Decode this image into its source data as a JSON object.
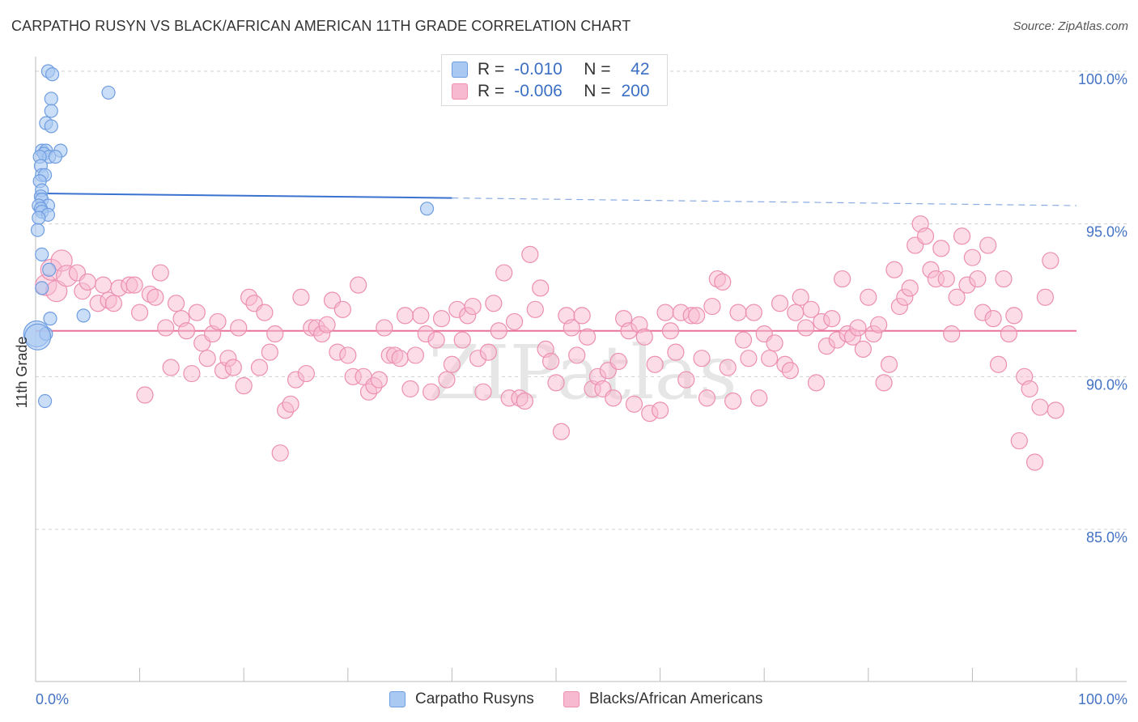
{
  "title": "CARPATHO RUSYN VS BLACK/AFRICAN AMERICAN 11TH GRADE CORRELATION CHART",
  "source": "Source: ZipAtlas.com",
  "watermark": "ZIPatlas",
  "colors": {
    "blue_fill": "#a9c8f2",
    "blue_stroke": "#6f9de0",
    "blue_line": "#3a72d0",
    "pink_fill": "#f7b9cf",
    "pink_stroke": "#ec8fb1",
    "pink_line": "#e8729a",
    "axis_label": "#4472c4",
    "grid": "#d0d0d0"
  },
  "legend_top": {
    "rows": [
      {
        "series": "Carpatho Rusyns",
        "r_label": "R =",
        "r_value": "-0.010",
        "n_label": "N =",
        "n_value": "42"
      },
      {
        "series": "Blacks/African Americans",
        "r_label": "R =",
        "r_value": "-0.006",
        "n_label": "N =",
        "n_value": "200"
      }
    ]
  },
  "legend_bottom": [
    "Carpatho Rusyns",
    "Blacks/African Americans"
  ],
  "chart_data": {
    "type": "scatter",
    "title": "CARPATHO RUSYN VS BLACK/AFRICAN AMERICAN 11TH GRADE CORRELATION CHART",
    "ylabel": "11th Grade",
    "xlabel": "",
    "xlim": [
      0,
      100
    ],
    "ylim": [
      80.0,
      101.0
    ],
    "x_ticks": [
      "0.0%",
      "100.0%"
    ],
    "y_ticks": [
      {
        "value": 100.0,
        "label": "100.0%"
      },
      {
        "value": 95.0,
        "label": "95.0%"
      },
      {
        "value": 90.0,
        "label": "90.0%"
      },
      {
        "value": 85.0,
        "label": "85.0%"
      }
    ],
    "grid": "horizontal dashed",
    "legend": "top-center and bottom",
    "series": [
      {
        "name": "Carpatho Rusyns",
        "R": -0.01,
        "N": 42,
        "trend": {
          "x0": 0,
          "y0": 96.0,
          "x1": 40,
          "y1": 95.85,
          "x_extend": 100,
          "y_extend": 95.6
        },
        "points": [
          [
            1.2,
            100.0
          ],
          [
            1.6,
            99.9
          ],
          [
            7.0,
            99.3
          ],
          [
            1.5,
            99.1
          ],
          [
            1.5,
            98.7
          ],
          [
            1.0,
            98.3
          ],
          [
            1.5,
            98.2
          ],
          [
            0.6,
            97.4
          ],
          [
            1.0,
            97.4
          ],
          [
            2.4,
            97.4
          ],
          [
            0.8,
            97.3
          ],
          [
            1.3,
            97.2
          ],
          [
            0.4,
            97.2
          ],
          [
            1.9,
            97.2
          ],
          [
            0.5,
            96.9
          ],
          [
            0.6,
            96.6
          ],
          [
            0.9,
            96.6
          ],
          [
            0.4,
            96.4
          ],
          [
            0.6,
            96.1
          ],
          [
            0.5,
            95.9
          ],
          [
            0.6,
            95.8
          ],
          [
            1.2,
            95.6
          ],
          [
            0.3,
            95.6
          ],
          [
            0.5,
            95.5
          ],
          [
            0.6,
            95.4
          ],
          [
            1.2,
            95.3
          ],
          [
            0.3,
            95.2
          ],
          [
            37.6,
            95.5
          ],
          [
            0.2,
            94.8
          ],
          [
            0.6,
            94.0
          ],
          [
            1.3,
            93.5
          ],
          [
            0.6,
            92.9
          ],
          [
            1.4,
            91.9
          ],
          [
            4.6,
            92.0
          ],
          [
            0.1,
            91.4
          ],
          [
            1.0,
            91.4
          ],
          [
            0.2,
            91.3
          ],
          [
            0.9,
            89.2
          ]
        ]
      },
      {
        "name": "Blacks/African Americans",
        "R": -0.006,
        "N": 200,
        "trend": {
          "x0": 0,
          "y0": 91.5,
          "x1": 100,
          "y1": 91.5
        },
        "points": [
          [
            1,
            93.0
          ],
          [
            1.5,
            93.5
          ],
          [
            2,
            92.8
          ],
          [
            2.5,
            93.8
          ],
          [
            3,
            93.3
          ],
          [
            4,
            93.4
          ],
          [
            4.5,
            92.8
          ],
          [
            5,
            93.1
          ],
          [
            6,
            92.4
          ],
          [
            6.5,
            93.0
          ],
          [
            7,
            92.5
          ],
          [
            7.5,
            92.4
          ],
          [
            8,
            92.9
          ],
          [
            9,
            93.0
          ],
          [
            9.5,
            93.0
          ],
          [
            10,
            92.1
          ],
          [
            10.5,
            89.4
          ],
          [
            11,
            92.7
          ],
          [
            11.5,
            92.6
          ],
          [
            12,
            93.4
          ],
          [
            12.5,
            91.6
          ],
          [
            13,
            90.3
          ],
          [
            13.5,
            92.4
          ],
          [
            14,
            91.9
          ],
          [
            14.5,
            91.5
          ],
          [
            15,
            90.1
          ],
          [
            15.5,
            92.1
          ],
          [
            16,
            91.1
          ],
          [
            16.5,
            90.6
          ],
          [
            17,
            91.4
          ],
          [
            17.5,
            91.8
          ],
          [
            18,
            90.2
          ],
          [
            18.5,
            90.6
          ],
          [
            19,
            90.3
          ],
          [
            19.5,
            91.6
          ],
          [
            20,
            89.7
          ],
          [
            20.5,
            92.6
          ],
          [
            21,
            92.4
          ],
          [
            21.5,
            90.3
          ],
          [
            22,
            92.1
          ],
          [
            22.5,
            90.8
          ],
          [
            23,
            91.4
          ],
          [
            23.5,
            87.5
          ],
          [
            24,
            88.9
          ],
          [
            24.5,
            89.1
          ],
          [
            25,
            89.9
          ],
          [
            25.5,
            92.6
          ],
          [
            26,
            90.1
          ],
          [
            26.5,
            91.6
          ],
          [
            27,
            91.6
          ],
          [
            27.5,
            91.4
          ],
          [
            28,
            91.7
          ],
          [
            28.5,
            92.5
          ],
          [
            29,
            90.8
          ],
          [
            29.5,
            92.2
          ],
          [
            30,
            90.7
          ],
          [
            30.5,
            90.0
          ],
          [
            31,
            93.0
          ],
          [
            31.5,
            90.0
          ],
          [
            32,
            89.5
          ],
          [
            32.5,
            89.7
          ],
          [
            33,
            89.9
          ],
          [
            33.5,
            91.6
          ],
          [
            34,
            90.7
          ],
          [
            34.5,
            90.7
          ],
          [
            35,
            90.6
          ],
          [
            35.5,
            92.0
          ],
          [
            36,
            89.6
          ],
          [
            36.5,
            90.7
          ],
          [
            37,
            92.0
          ],
          [
            37.5,
            91.4
          ],
          [
            38,
            89.5
          ],
          [
            38.5,
            91.2
          ],
          [
            39,
            91.9
          ],
          [
            39.5,
            89.9
          ],
          [
            40,
            90.4
          ],
          [
            40.5,
            92.2
          ],
          [
            41,
            91.2
          ],
          [
            41.5,
            92.0
          ],
          [
            42,
            92.3
          ],
          [
            42.5,
            90.6
          ],
          [
            43,
            89.5
          ],
          [
            43.5,
            90.8
          ],
          [
            44,
            92.4
          ],
          [
            44.5,
            91.5
          ],
          [
            45,
            93.4
          ],
          [
            45.5,
            89.3
          ],
          [
            46,
            91.8
          ],
          [
            46.5,
            89.3
          ],
          [
            47,
            89.2
          ],
          [
            47.5,
            94.0
          ],
          [
            48,
            92.2
          ],
          [
            48.5,
            92.9
          ],
          [
            49,
            90.9
          ],
          [
            49.5,
            90.5
          ],
          [
            50,
            89.8
          ],
          [
            50.5,
            88.2
          ],
          [
            51,
            92.0
          ],
          [
            51.5,
            91.6
          ],
          [
            52,
            90.7
          ],
          [
            52.5,
            92.0
          ],
          [
            53,
            91.3
          ],
          [
            53.5,
            89.6
          ],
          [
            54,
            90.0
          ],
          [
            54.5,
            89.6
          ],
          [
            55,
            90.2
          ],
          [
            55.5,
            89.3
          ],
          [
            56,
            90.5
          ],
          [
            56.5,
            91.9
          ],
          [
            57,
            91.5
          ],
          [
            57.5,
            89.1
          ],
          [
            58,
            91.7
          ],
          [
            58.5,
            91.3
          ],
          [
            59,
            88.8
          ],
          [
            59.5,
            90.4
          ],
          [
            60,
            88.9
          ],
          [
            60.5,
            92.1
          ],
          [
            61,
            91.5
          ],
          [
            61.5,
            90.8
          ],
          [
            62,
            92.1
          ],
          [
            62.5,
            89.9
          ],
          [
            63,
            92.0
          ],
          [
            63.5,
            92.0
          ],
          [
            64,
            90.6
          ],
          [
            64.5,
            89.3
          ],
          [
            65,
            92.3
          ],
          [
            65.5,
            93.2
          ],
          [
            66,
            93.1
          ],
          [
            66.5,
            90.3
          ],
          [
            67,
            89.2
          ],
          [
            67.5,
            92.1
          ],
          [
            68,
            91.2
          ],
          [
            68.5,
            90.6
          ],
          [
            69,
            92.1
          ],
          [
            69.5,
            89.3
          ],
          [
            70,
            91.4
          ],
          [
            70.5,
            90.6
          ],
          [
            71,
            91.1
          ],
          [
            71.5,
            92.4
          ],
          [
            72,
            90.4
          ],
          [
            72.5,
            90.2
          ],
          [
            73,
            92.1
          ],
          [
            73.5,
            92.6
          ],
          [
            74,
            91.6
          ],
          [
            74.5,
            92.2
          ],
          [
            75,
            89.8
          ],
          [
            75.5,
            91.8
          ],
          [
            76,
            91.0
          ],
          [
            76.5,
            91.9
          ],
          [
            77,
            91.2
          ],
          [
            77.5,
            93.2
          ],
          [
            78,
            91.4
          ],
          [
            78.5,
            91.3
          ],
          [
            79,
            91.6
          ],
          [
            79.5,
            90.9
          ],
          [
            80,
            92.6
          ],
          [
            80.5,
            91.4
          ],
          [
            81,
            91.7
          ],
          [
            81.5,
            89.8
          ],
          [
            82,
            90.4
          ],
          [
            82.5,
            93.5
          ],
          [
            83,
            92.3
          ],
          [
            83.5,
            92.6
          ],
          [
            84,
            92.9
          ],
          [
            84.5,
            94.3
          ],
          [
            85,
            95.0
          ],
          [
            85.5,
            94.6
          ],
          [
            86,
            93.5
          ],
          [
            86.5,
            93.2
          ],
          [
            87,
            94.2
          ],
          [
            87.5,
            93.2
          ],
          [
            88,
            91.4
          ],
          [
            88.5,
            92.6
          ],
          [
            89,
            94.6
          ],
          [
            89.5,
            93.0
          ],
          [
            90,
            93.9
          ],
          [
            90.5,
            93.2
          ],
          [
            91,
            92.1
          ],
          [
            91.5,
            94.3
          ],
          [
            92,
            91.9
          ],
          [
            92.5,
            90.4
          ],
          [
            93,
            93.2
          ],
          [
            93.5,
            91.4
          ],
          [
            94,
            92.0
          ],
          [
            94.5,
            87.9
          ],
          [
            95,
            90.0
          ],
          [
            95.5,
            89.6
          ],
          [
            96,
            87.2
          ],
          [
            96.5,
            89.0
          ],
          [
            97,
            92.6
          ],
          [
            97.5,
            93.8
          ],
          [
            98,
            88.9
          ]
        ]
      }
    ]
  }
}
